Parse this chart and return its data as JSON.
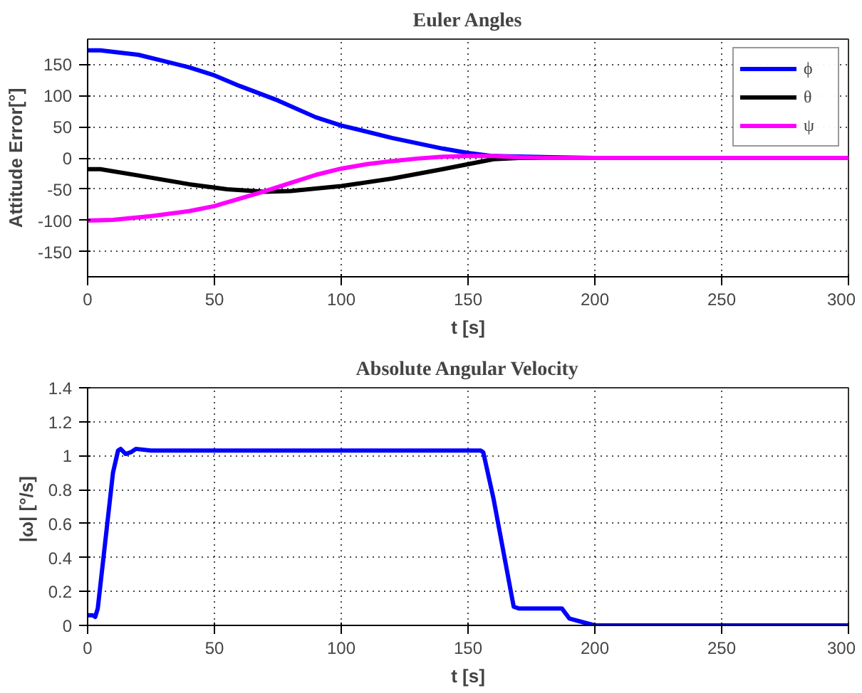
{
  "chart_data": [
    {
      "type": "line",
      "title": "Euler Angles",
      "xlabel": "t [s]",
      "ylabel": "Attitude Error[°]",
      "xlim": [
        0,
        300
      ],
      "ylim": [
        -190,
        190
      ],
      "xticks": [
        0,
        50,
        100,
        150,
        200,
        250,
        300
      ],
      "yticks": [
        -150,
        -100,
        -50,
        0,
        50,
        100,
        150
      ],
      "grid": true,
      "legend": "top right",
      "line_style": "solid",
      "series": [
        {
          "name": "ϕ",
          "color": "#0000ff",
          "x": [
            0,
            5,
            20,
            40,
            50,
            60,
            75,
            90,
            100,
            120,
            140,
            150,
            160,
            200,
            300
          ],
          "values": [
            172,
            172,
            165,
            145,
            132,
            115,
            92,
            65,
            52,
            32,
            15,
            8,
            3,
            0,
            0
          ]
        },
        {
          "name": "θ",
          "color": "#000000",
          "x": [
            0,
            5,
            20,
            40,
            55,
            70,
            80,
            100,
            120,
            140,
            150,
            160,
            170,
            300
          ],
          "values": [
            -18,
            -18,
            -28,
            -42,
            -50,
            -54,
            -53,
            -45,
            -33,
            -18,
            -10,
            -2,
            0,
            0
          ]
        },
        {
          "name": "ψ",
          "color": "#ff00ff",
          "x": [
            0,
            10,
            25,
            40,
            50,
            60,
            70,
            80,
            90,
            100,
            110,
            120,
            130,
            140,
            150,
            160,
            170,
            180,
            300
          ],
          "values": [
            -100,
            -99,
            -93,
            -85,
            -77,
            -65,
            -53,
            -40,
            -27,
            -17,
            -10,
            -5,
            -1,
            2,
            3,
            3,
            1,
            0,
            0
          ]
        }
      ]
    },
    {
      "type": "line",
      "title": "Absolute Angular Velocity",
      "xlabel": "t [s]",
      "ylabel": "|ω|  [°/s]",
      "xlim": [
        0,
        300
      ],
      "ylim": [
        0,
        1.4
      ],
      "xticks": [
        0,
        50,
        100,
        150,
        200,
        250,
        300
      ],
      "yticks": [
        0,
        0.2,
        0.4,
        0.6,
        0.8,
        1,
        1.2,
        1.4
      ],
      "grid": true,
      "line_style": "solid",
      "series": [
        {
          "color": "#0000ff",
          "x": [
            0,
            2,
            3,
            4,
            7,
            10,
            12,
            13,
            15,
            17,
            19,
            25,
            155,
            156,
            160,
            165,
            168,
            170,
            175,
            187,
            190,
            195,
            200,
            300
          ],
          "values": [
            0.06,
            0.06,
            0.05,
            0.1,
            0.5,
            0.9,
            1.03,
            1.04,
            1.01,
            1.02,
            1.04,
            1.03,
            1.03,
            1.02,
            0.75,
            0.35,
            0.11,
            0.1,
            0.1,
            0.1,
            0.04,
            0.02,
            0,
            0
          ]
        }
      ]
    }
  ]
}
